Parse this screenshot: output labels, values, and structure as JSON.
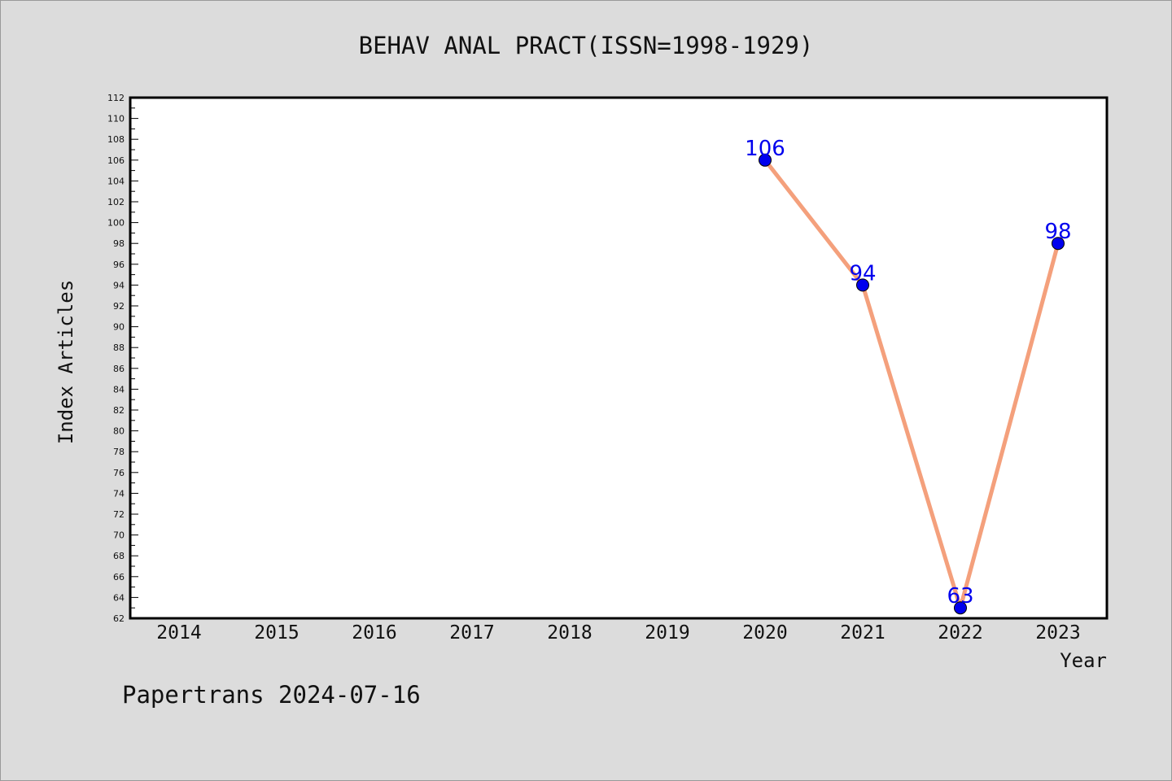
{
  "chart_data": {
    "type": "line",
    "title": "BEHAV ANAL PRACT(ISSN=1998-1929)",
    "xlabel": "Year",
    "ylabel": "Index Articles",
    "categories": [
      "2014",
      "2015",
      "2016",
      "2017",
      "2018",
      "2019",
      "2020",
      "2021",
      "2022",
      "2023"
    ],
    "series": [
      {
        "x": [
          "2020",
          "2021",
          "2022",
          "2023"
        ],
        "values": [
          106,
          94,
          63,
          98
        ],
        "labels": [
          "106",
          "94",
          "63",
          "98"
        ]
      }
    ],
    "ylim": [
      62,
      112
    ],
    "yticks": [
      "62",
      "64",
      "66",
      "68",
      "70",
      "72",
      "74",
      "76",
      "78",
      "80",
      "82",
      "84",
      "86",
      "88",
      "90",
      "92",
      "94",
      "96",
      "98",
      "100",
      "102",
      "104",
      "106",
      "108",
      "110",
      "112"
    ],
    "grid": false,
    "legend": "none",
    "colors": {
      "line": "#f4a07c",
      "marker": "#0000ee",
      "label": "#0000ee",
      "plot_bg": "#ffffff",
      "page_bg": "#dcdcdc"
    }
  },
  "footer": "Papertrans 2024-07-16"
}
